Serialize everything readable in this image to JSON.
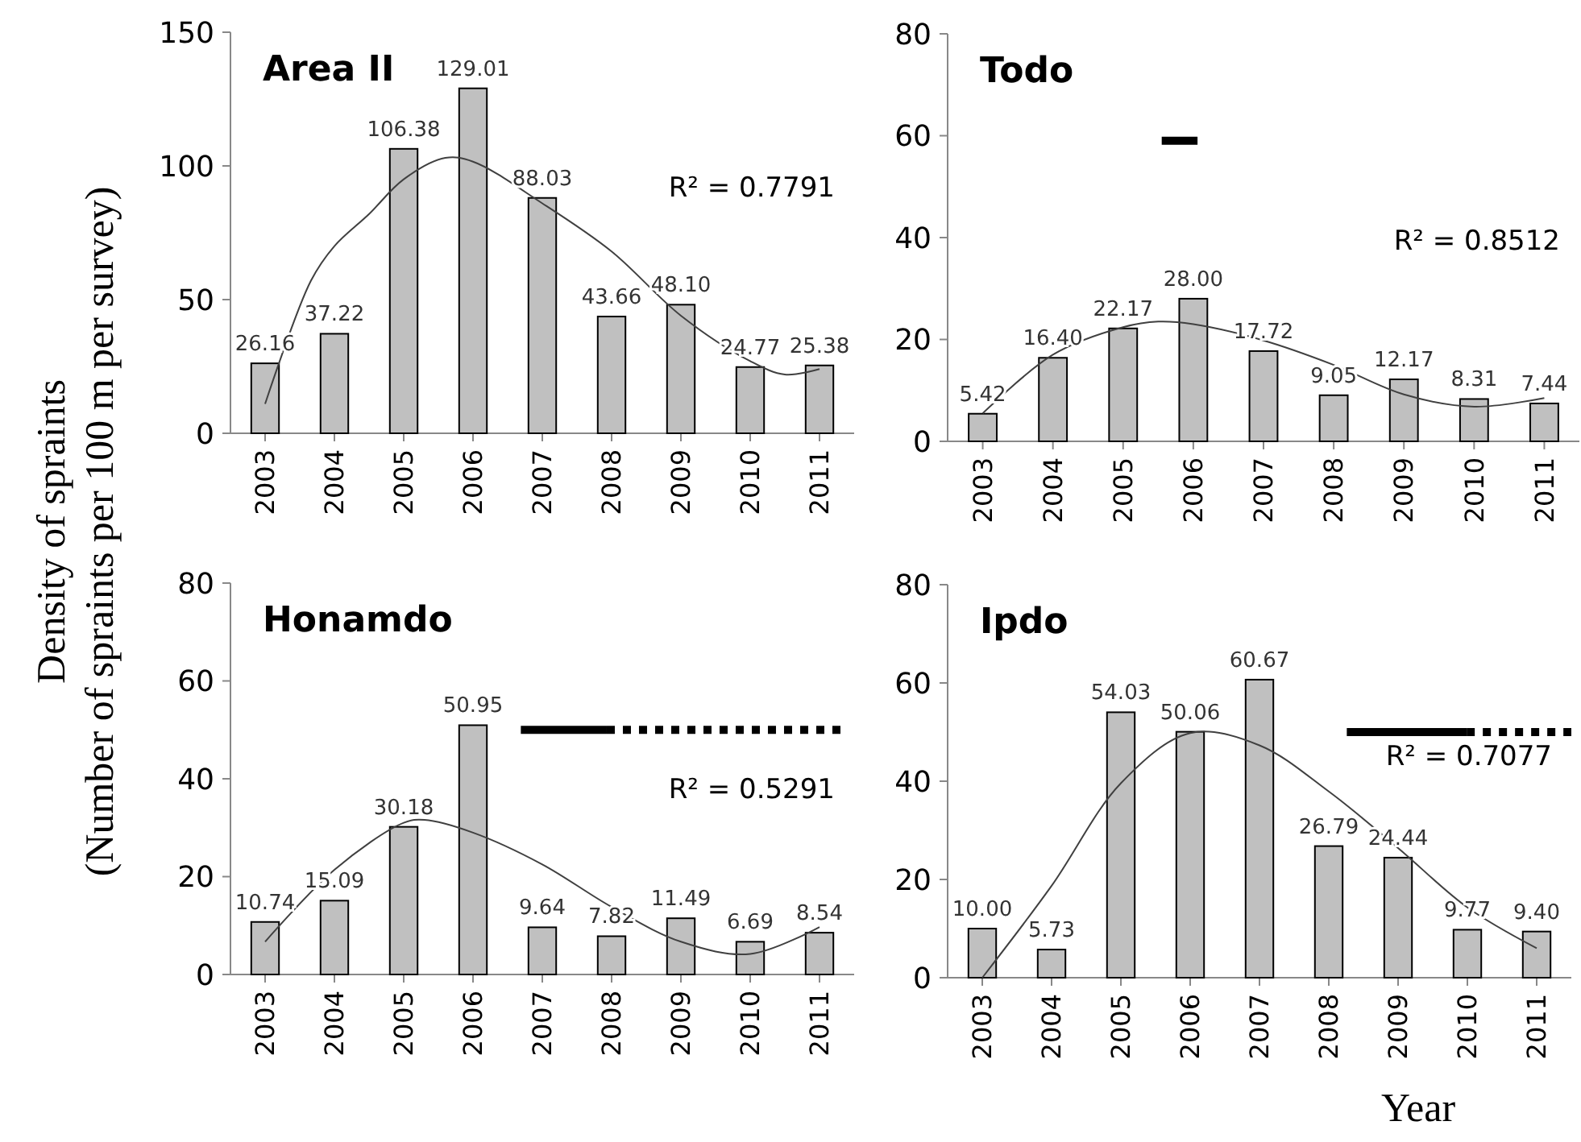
{
  "chart_data": [
    {
      "type": "bar",
      "title": "Area II",
      "ylabel": "Density of spraints\n(Number of spraints per 100 m per survey)",
      "x": [
        2003,
        2004,
        2005,
        2006,
        2007,
        2008,
        2009,
        2010,
        2011
      ],
      "xlim": [
        2002.5,
        2011.5
      ],
      "xticks": [
        2003,
        2004,
        2005,
        2006,
        2007,
        2008,
        2009,
        2010,
        2011
      ],
      "ylim": [
        0,
        150
      ],
      "yticks": [
        0,
        50,
        100,
        150
      ],
      "annotations": [
        "R² = 0.7791"
      ],
      "series": [
        {
          "color": "#c0c0c0",
          "values": [
            26.16,
            37.22,
            106.38,
            129.01,
            88.03,
            43.66,
            48.1,
            24.77,
            25.38
          ],
          "value_labels": [
            "26.16",
            "37.22",
            "106.38",
            "129.01",
            "88.03",
            "43.66",
            "48.10",
            "24.77",
            "25.38"
          ]
        },
        {
          "type": "line",
          "color": "#404040",
          "x": [
            2003,
            2003.66,
            2004,
            2004.5,
            2005,
            2005.6,
            2006,
            2007,
            2008,
            2009,
            2010,
            2010.5,
            2011
          ],
          "values": [
            11,
            57,
            70,
            82,
            95,
            103,
            101.6,
            86,
            68,
            44,
            27,
            22,
            24
          ]
        }
      ]
    },
    {
      "type": "bar",
      "title": "Todo",
      "x": [
        2003,
        2004,
        2005,
        2006,
        2007,
        2008,
        2009,
        2010,
        2011
      ],
      "xlim": [
        2002.5,
        2011.5
      ],
      "xticks": [
        2003,
        2004,
        2005,
        2006,
        2007,
        2008,
        2009,
        2010,
        2011
      ],
      "ylim": [
        0,
        80
      ],
      "yticks": [
        0,
        20,
        40,
        60,
        80
      ],
      "annotations": [
        "R² = 0.8512"
      ],
      "series": [
        {
          "color": "#c0c0c0",
          "values": [
            5.42,
            16.4,
            22.17,
            28,
            17.72,
            9.05,
            12.17,
            8.31,
            7.44
          ],
          "value_labels": [
            "5.42",
            "16.40",
            "22.17",
            "28.00",
            "17.72",
            "9.05",
            "12.17",
            "8.31",
            "7.44"
          ]
        },
        {
          "type": "line",
          "color": "#404040",
          "x": [
            2003,
            2004,
            2005,
            2005.5,
            2006,
            2007,
            2008,
            2009,
            2010,
            2011
          ],
          "values": [
            5.5,
            17,
            22.4,
            23.5,
            23,
            19.8,
            15,
            9.2,
            6.8,
            8.5
          ]
        },
        {
          "type": "line",
          "color": "#000000",
          "line_style": "solid",
          "x": [
            2005.55,
            2006.06
          ],
          "values": [
            59,
            59
          ]
        }
      ]
    },
    {
      "type": "bar",
      "title": "Honamdo",
      "x": [
        2003,
        2004,
        2005,
        2006,
        2007,
        2008,
        2009,
        2010,
        2011
      ],
      "xlim": [
        2002.5,
        2011.5
      ],
      "xticks": [
        2003,
        2004,
        2005,
        2006,
        2007,
        2008,
        2009,
        2010,
        2011
      ],
      "ylim": [
        0,
        80
      ],
      "yticks": [
        0,
        20,
        40,
        60,
        80
      ],
      "annotations": [
        "R² = 0.5291"
      ],
      "series": [
        {
          "color": "#c0c0c0",
          "values": [
            10.74,
            15.09,
            30.18,
            50.95,
            9.64,
            7.82,
            11.49,
            6.69,
            8.54
          ],
          "value_labels": [
            "10.74",
            "15.09",
            "30.18",
            "50.95",
            "9.64",
            "7.82",
            "11.49",
            "6.69",
            "8.54"
          ]
        },
        {
          "type": "line",
          "color": "#404040",
          "x": [
            2003,
            2004,
            2005,
            2005.3,
            2006,
            2007,
            2008,
            2009,
            2010,
            2011
          ],
          "values": [
            6.7,
            21.4,
            31,
            31.6,
            29,
            22.5,
            13.8,
            6.7,
            4.2,
            9.7
          ]
        },
        {
          "type": "line",
          "color": "#000000",
          "line_style": "solid",
          "x": [
            2006.69,
            2007.93
          ],
          "values": [
            50,
            50
          ]
        },
        {
          "type": "line",
          "color": "#000000",
          "line_style": "dotted",
          "x": [
            2007.93,
            2011.38
          ],
          "values": [
            50,
            50
          ]
        }
      ]
    },
    {
      "type": "bar",
      "title": "Ipdo",
      "xlabel": "Year",
      "x": [
        2003,
        2004,
        2005,
        2006,
        2007,
        2008,
        2009,
        2010,
        2011
      ],
      "xlim": [
        2002.5,
        2011.5
      ],
      "xticks": [
        2003,
        2004,
        2005,
        2006,
        2007,
        2008,
        2009,
        2010,
        2011
      ],
      "ylim": [
        0,
        80
      ],
      "yticks": [
        0,
        20,
        40,
        60,
        80
      ],
      "annotations": [
        "R² = 0.7077"
      ],
      "series": [
        {
          "color": "#c0c0c0",
          "values": [
            10,
            5.73,
            54.03,
            50.06,
            60.67,
            26.79,
            24.44,
            9.77,
            9.4
          ],
          "value_labels": [
            "10.00",
            "5.73",
            "54.03",
            "50.06",
            "60.67",
            "26.79",
            "24.44",
            "9.77",
            "9.40"
          ]
        },
        {
          "type": "line",
          "color": "#404040",
          "x": [
            2003,
            2004,
            2005,
            2006,
            2007,
            2008,
            2009,
            2010,
            2011
          ],
          "values": [
            0,
            18.7,
            39.6,
            49.8,
            47.3,
            37.9,
            26.4,
            14.3,
            6
          ]
        },
        {
          "type": "line",
          "color": "#000000",
          "line_style": "solid",
          "x": [
            2008.26,
            2009.99
          ],
          "values": [
            50,
            50
          ]
        },
        {
          "type": "line",
          "color": "#000000",
          "line_style": "dotted",
          "x": [
            2009.99,
            2011.5
          ],
          "values": [
            50,
            50
          ]
        }
      ]
    }
  ]
}
